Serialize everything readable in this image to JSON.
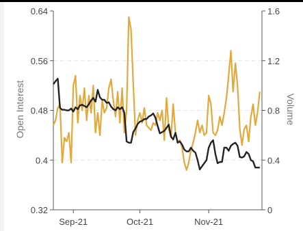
{
  "chart_data": {
    "type": "line",
    "ylabel_left": "Open Interest",
    "ylabel_right": "Volume",
    "y_left_ticks": [
      "0.32",
      "0.4",
      "0.48",
      "0.56",
      "0.64"
    ],
    "y_right_ticks": [
      "0",
      "0.4",
      "0.8",
      "1.2",
      "1.6"
    ],
    "y_left_range": [
      0.32,
      0.64
    ],
    "y_right_range": [
      0,
      1.6
    ],
    "x_ticks": [
      "Sep-21",
      "Oct-21",
      "Nov-21"
    ],
    "x_tick_dates": [
      "2021-09-01",
      "2021-10-01",
      "2021-11-01"
    ],
    "x_range": [
      "2021-08-23",
      "2021-11-25"
    ],
    "grid": "horizontal dashed",
    "colors": {
      "open_interest": "#222222",
      "volume": "#e3a83c"
    },
    "series": [
      {
        "axis": "left",
        "points": [
          [
            "2021-08-23",
            0.522
          ],
          [
            "2021-08-24",
            0.527
          ],
          [
            "2021-08-25",
            0.531
          ],
          [
            "2021-08-26",
            0.484
          ],
          [
            "2021-08-27",
            0.481
          ],
          [
            "2021-08-28",
            0.481
          ],
          [
            "2021-08-29",
            0.48
          ],
          [
            "2021-08-30",
            0.48
          ],
          [
            "2021-08-31",
            0.483
          ],
          [
            "2021-09-01",
            0.478
          ],
          [
            "2021-09-02",
            0.485
          ],
          [
            "2021-09-03",
            0.482
          ],
          [
            "2021-09-04",
            0.488
          ],
          [
            "2021-09-05",
            0.489
          ],
          [
            "2021-09-06",
            0.487
          ],
          [
            "2021-09-07",
            0.485
          ],
          [
            "2021-09-08",
            0.49
          ],
          [
            "2021-09-09",
            0.496
          ],
          [
            "2021-09-10",
            0.5
          ],
          [
            "2021-09-11",
            0.494
          ],
          [
            "2021-09-12",
            0.513
          ],
          [
            "2021-09-13",
            0.501
          ],
          [
            "2021-09-14",
            0.497
          ],
          [
            "2021-09-15",
            0.497
          ],
          [
            "2021-09-16",
            0.492
          ],
          [
            "2021-09-17",
            0.493
          ],
          [
            "2021-09-18",
            0.486
          ],
          [
            "2021-09-19",
            0.482
          ],
          [
            "2021-09-20",
            0.48
          ],
          [
            "2021-09-21",
            0.485
          ],
          [
            "2021-09-22",
            0.482
          ],
          [
            "2021-09-23",
            0.485
          ],
          [
            "2021-09-24",
            0.476
          ],
          [
            "2021-09-25",
            0.43
          ],
          [
            "2021-09-26",
            0.428
          ],
          [
            "2021-09-27",
            0.428
          ],
          [
            "2021-09-28",
            0.445
          ],
          [
            "2021-09-29",
            0.451
          ],
          [
            "2021-09-30",
            0.458
          ],
          [
            "2021-10-01",
            0.462
          ],
          [
            "2021-10-02",
            0.463
          ],
          [
            "2021-10-03",
            0.466
          ],
          [
            "2021-10-04",
            0.466
          ],
          [
            "2021-10-05",
            0.47
          ],
          [
            "2021-10-06",
            0.472
          ],
          [
            "2021-10-07",
            0.475
          ],
          [
            "2021-10-08",
            0.468
          ],
          [
            "2021-10-09",
            0.455
          ],
          [
            "2021-10-10",
            0.443
          ],
          [
            "2021-10-11",
            0.445
          ],
          [
            "2021-10-12",
            0.447
          ],
          [
            "2021-10-13",
            0.452
          ],
          [
            "2021-10-14",
            0.457
          ],
          [
            "2021-10-15",
            0.438
          ],
          [
            "2021-10-16",
            0.433
          ],
          [
            "2021-10-17",
            0.444
          ],
          [
            "2021-10-18",
            0.428
          ],
          [
            "2021-10-19",
            0.43
          ],
          [
            "2021-10-20",
            0.425
          ],
          [
            "2021-10-21",
            0.417
          ],
          [
            "2021-10-22",
            0.414
          ],
          [
            "2021-10-23",
            0.414
          ],
          [
            "2021-10-24",
            0.42
          ],
          [
            "2021-10-25",
            0.415
          ],
          [
            "2021-10-26",
            0.412
          ],
          [
            "2021-10-27",
            0.4
          ],
          [
            "2021-10-28",
            0.385
          ],
          [
            "2021-10-29",
            0.39
          ],
          [
            "2021-10-30",
            0.395
          ],
          [
            "2021-10-31",
            0.4
          ],
          [
            "2021-11-01",
            0.42
          ],
          [
            "2021-11-02",
            0.428
          ],
          [
            "2021-11-03",
            0.432
          ],
          [
            "2021-11-04",
            0.41
          ],
          [
            "2021-11-05",
            0.395
          ],
          [
            "2021-11-06",
            0.397
          ],
          [
            "2021-11-07",
            0.397
          ],
          [
            "2021-11-08",
            0.42
          ],
          [
            "2021-11-09",
            0.42
          ],
          [
            "2021-11-10",
            0.415
          ],
          [
            "2021-11-11",
            0.423
          ],
          [
            "2021-11-12",
            0.426
          ],
          [
            "2021-11-13",
            0.428
          ],
          [
            "2021-11-14",
            0.423
          ],
          [
            "2021-11-15",
            0.405
          ],
          [
            "2021-11-16",
            0.404
          ],
          [
            "2021-11-17",
            0.406
          ],
          [
            "2021-11-18",
            0.413
          ],
          [
            "2021-11-19",
            0.41
          ],
          [
            "2021-11-20",
            0.4
          ],
          [
            "2021-11-21",
            0.398
          ],
          [
            "2021-11-22",
            0.388
          ],
          [
            "2021-11-23",
            0.388
          ],
          [
            "2021-11-24",
            0.388
          ]
        ]
      },
      {
        "axis": "right",
        "points": [
          [
            "2021-08-23",
            0.68
          ],
          [
            "2021-08-24",
            0.72
          ],
          [
            "2021-08-25",
            0.82
          ],
          [
            "2021-08-26",
            0.85
          ],
          [
            "2021-08-27",
            0.38
          ],
          [
            "2021-08-28",
            0.58
          ],
          [
            "2021-08-29",
            0.55
          ],
          [
            "2021-08-30",
            0.62
          ],
          [
            "2021-08-31",
            0.38
          ],
          [
            "2021-09-01",
            1.0
          ],
          [
            "2021-09-02",
            1.08
          ],
          [
            "2021-09-03",
            0.7
          ],
          [
            "2021-09-04",
            0.92
          ],
          [
            "2021-09-05",
            0.8
          ],
          [
            "2021-09-06",
            0.98
          ],
          [
            "2021-09-07",
            0.72
          ],
          [
            "2021-09-08",
            0.92
          ],
          [
            "2021-09-09",
            0.78
          ],
          [
            "2021-09-10",
            1.0
          ],
          [
            "2021-09-11",
            0.62
          ],
          [
            "2021-09-12",
            0.78
          ],
          [
            "2021-09-13",
            0.6
          ],
          [
            "2021-09-14",
            0.88
          ],
          [
            "2021-09-15",
            0.78
          ],
          [
            "2021-09-16",
            0.82
          ],
          [
            "2021-09-17",
            0.98
          ],
          [
            "2021-09-18",
            1.05
          ],
          [
            "2021-09-19",
            0.88
          ],
          [
            "2021-09-20",
            0.75
          ],
          [
            "2021-09-21",
            0.95
          ],
          [
            "2021-09-22",
            0.7
          ],
          [
            "2021-09-23",
            0.98
          ],
          [
            "2021-09-24",
            0.62
          ],
          [
            "2021-09-25",
            0.8
          ],
          [
            "2021-09-26",
            1.55
          ],
          [
            "2021-09-27",
            1.45
          ],
          [
            "2021-09-28",
            1.02
          ],
          [
            "2021-09-29",
            0.6
          ],
          [
            "2021-09-30",
            0.72
          ],
          [
            "2021-10-01",
            0.78
          ],
          [
            "2021-10-02",
            0.7
          ],
          [
            "2021-10-03",
            0.82
          ],
          [
            "2021-10-04",
            0.68
          ],
          [
            "2021-10-05",
            0.66
          ],
          [
            "2021-10-06",
            0.64
          ],
          [
            "2021-10-07",
            0.7
          ],
          [
            "2021-10-08",
            0.68
          ],
          [
            "2021-10-09",
            0.78
          ],
          [
            "2021-10-10",
            0.72
          ],
          [
            "2021-10-11",
            0.8
          ],
          [
            "2021-10-12",
            0.56
          ],
          [
            "2021-10-13",
            0.9
          ],
          [
            "2021-10-14",
            0.65
          ],
          [
            "2021-10-15",
            0.58
          ],
          [
            "2021-10-16",
            0.85
          ],
          [
            "2021-10-17",
            0.62
          ],
          [
            "2021-10-18",
            0.55
          ],
          [
            "2021-10-19",
            0.56
          ],
          [
            "2021-10-20",
            0.5
          ],
          [
            "2021-10-21",
            0.38
          ],
          [
            "2021-10-22",
            0.32
          ],
          [
            "2021-10-23",
            0.38
          ],
          [
            "2021-10-24",
            0.48
          ],
          [
            "2021-10-25",
            0.54
          ],
          [
            "2021-10-26",
            0.62
          ],
          [
            "2021-10-27",
            0.72
          ],
          [
            "2021-10-28",
            0.62
          ],
          [
            "2021-10-29",
            0.68
          ],
          [
            "2021-10-30",
            0.6
          ],
          [
            "2021-10-31",
            0.62
          ],
          [
            "2021-11-01",
            0.92
          ],
          [
            "2021-11-02",
            0.85
          ],
          [
            "2021-11-03",
            0.62
          ],
          [
            "2021-11-04",
            0.6
          ],
          [
            "2021-11-05",
            0.64
          ],
          [
            "2021-11-06",
            0.75
          ],
          [
            "2021-11-07",
            0.68
          ],
          [
            "2021-11-08",
            0.78
          ],
          [
            "2021-11-09",
            0.9
          ],
          [
            "2021-11-10",
            1.08
          ],
          [
            "2021-11-11",
            1.28
          ],
          [
            "2021-11-12",
            0.95
          ],
          [
            "2021-11-13",
            1.18
          ],
          [
            "2021-11-14",
            1.0
          ],
          [
            "2021-11-15",
            0.65
          ],
          [
            "2021-11-16",
            0.52
          ],
          [
            "2021-11-17",
            0.65
          ],
          [
            "2021-11-18",
            0.68
          ],
          [
            "2021-11-19",
            0.55
          ],
          [
            "2021-11-20",
            0.75
          ],
          [
            "2021-11-21",
            0.85
          ],
          [
            "2021-11-22",
            0.68
          ],
          [
            "2021-11-23",
            0.78
          ],
          [
            "2021-11-24",
            0.95
          ]
        ]
      }
    ]
  }
}
